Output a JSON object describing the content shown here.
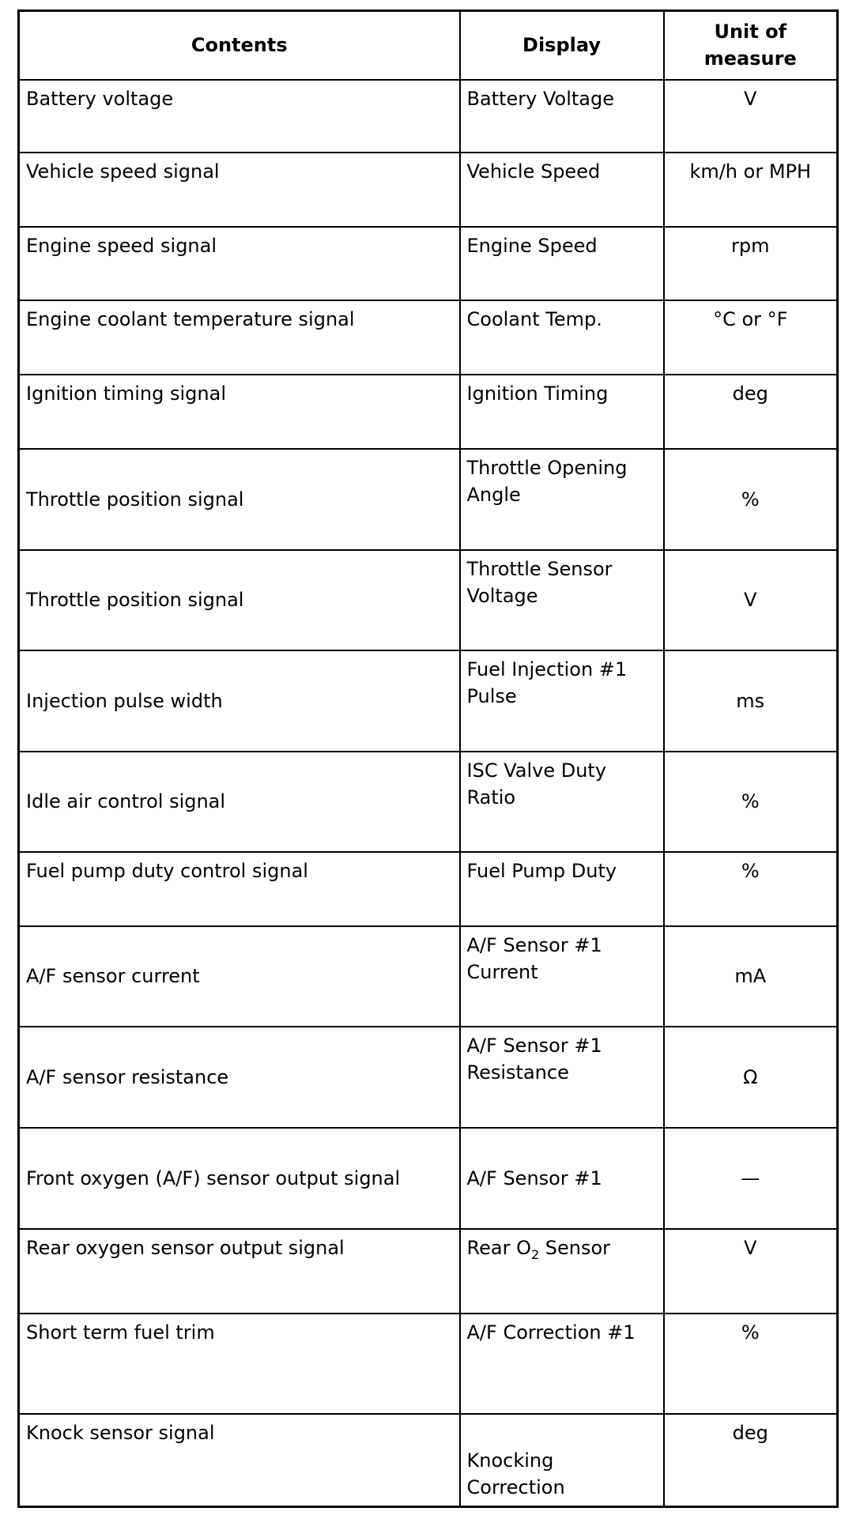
{
  "headers": {
    "contents": "Contents",
    "display": "Display",
    "unit": "Unit of measure"
  },
  "rows": [
    {
      "contents": "Battery voltage",
      "display": "Battery Voltage",
      "unit": "V"
    },
    {
      "contents": "Vehicle speed signal",
      "display": "Vehicle Speed",
      "unit": "km/h or MPH"
    },
    {
      "contents": "Engine speed signal",
      "display": "Engine Speed",
      "unit": "rpm"
    },
    {
      "contents": "Engine coolant temperature signal",
      "display": "Coolant Temp.",
      "unit": "°C or °F"
    },
    {
      "contents": "Ignition timing signal",
      "display": "Ignition Timing",
      "unit": "deg"
    },
    {
      "contents": "Throttle position signal",
      "display": "Throttle Opening Angle",
      "unit": "%"
    },
    {
      "contents": "Throttle position signal",
      "display": "Throttle Sensor Voltage",
      "unit": "V"
    },
    {
      "contents": "Injection pulse width",
      "display": "Fuel Injection #1 Pulse",
      "unit": "ms"
    },
    {
      "contents": "Idle air control signal",
      "display": "ISC Valve Duty Ratio",
      "unit": "%"
    },
    {
      "contents": "Fuel pump duty control signal",
      "display": "Fuel Pump Duty",
      "unit": "%"
    },
    {
      "contents": "A/F sensor current",
      "display": "A/F Sensor #1 Current",
      "unit": "mA"
    },
    {
      "contents": "A/F sensor resistance",
      "display": "A/F Sensor #1 Resistance",
      "unit": "Ω"
    },
    {
      "contents": "Front oxygen (A/F) sensor output signal",
      "display": "A/F Sensor #1",
      "unit": "—"
    },
    {
      "contents": "Rear oxygen sensor output signal",
      "display_parts": [
        "Rear O",
        "2",
        " Sensor"
      ],
      "unit": "V"
    },
    {
      "contents": "Short term fuel trim",
      "display": "A/F Correction #1",
      "unit": "%"
    },
    {
      "contents": "Knock sensor signal",
      "display": "Knocking Correction",
      "unit": "deg"
    }
  ]
}
